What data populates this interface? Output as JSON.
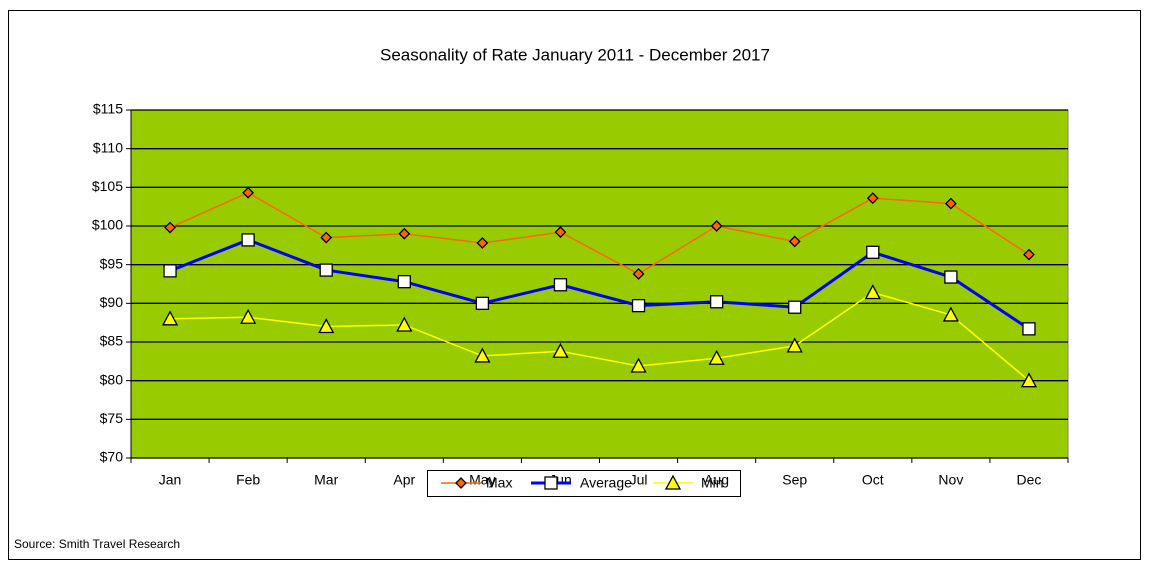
{
  "chart_data": {
    "type": "line",
    "title": "Seasonality of Rate January 2011 - December 2017",
    "source": "Source: Smith Travel Research",
    "categories": [
      "Jan",
      "Feb",
      "Mar",
      "Apr",
      "May",
      "Jun",
      "Jul",
      "Aug",
      "Sep",
      "Oct",
      "Nov",
      "Dec"
    ],
    "series": [
      {
        "name": "Max",
        "color": "#ff6600",
        "marker": "diamond",
        "marker_fill": "#ff6600",
        "line_width": 1.5,
        "values": [
          99.8,
          104.3,
          98.5,
          99.0,
          97.8,
          99.2,
          93.8,
          100.0,
          98.0,
          103.6,
          102.9,
          96.3
        ]
      },
      {
        "name": "Average",
        "color": "#0000ff",
        "marker": "square",
        "marker_fill": "#ffffff",
        "line_width": 3,
        "values": [
          94.2,
          98.2,
          94.3,
          92.8,
          90.0,
          92.4,
          89.7,
          90.2,
          89.5,
          96.6,
          93.4,
          86.7
        ]
      },
      {
        "name": "Min",
        "color": "#ffff00",
        "marker": "triangle",
        "marker_fill": "#ffff00",
        "line_width": 1.5,
        "values": [
          88.0,
          88.2,
          87.0,
          87.2,
          83.2,
          83.8,
          81.9,
          82.9,
          84.5,
          91.4,
          88.5,
          80.0
        ]
      }
    ],
    "ylim": [
      70,
      115
    ],
    "yticks": [
      {
        "value": 70,
        "label": "$70"
      },
      {
        "value": 75,
        "label": "$75"
      },
      {
        "value": 80,
        "label": "$80"
      },
      {
        "value": 85,
        "label": "$85"
      },
      {
        "value": 90,
        "label": "$90"
      },
      {
        "value": 95,
        "label": "$95"
      },
      {
        "value": 100,
        "label": "$100"
      },
      {
        "value": 105,
        "label": "$105"
      },
      {
        "value": 110,
        "label": "$110"
      },
      {
        "value": 115,
        "label": "$115"
      }
    ],
    "grid": true,
    "plot_background": "#99cc00",
    "legend": "bottom"
  }
}
